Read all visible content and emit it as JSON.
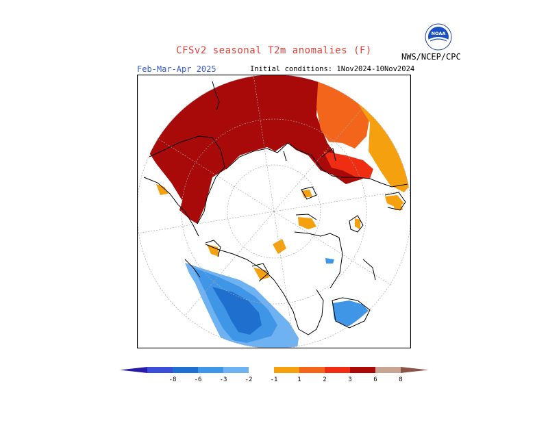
{
  "header": {
    "title": "CFSv2 seasonal T2m anomalies (F)",
    "period": "Feb-Mar-Apr 2025",
    "initial_conditions": "Initial conditions: 1Nov2024-10Nov2024",
    "agency": "NWS/NCEP/CPC",
    "logo_text": "NOAA"
  },
  "colorbar": {
    "tick_labels": [
      "-8",
      "-6",
      "-3",
      "-2",
      "-1",
      "1",
      "2",
      "3",
      "6",
      "8"
    ],
    "colors": [
      "#2a1aa8",
      "#3b4fd6",
      "#1f6fcf",
      "#3f95e6",
      "#6fb2f2",
      "#ffffff",
      "#f5a00e",
      "#f4651c",
      "#ee2d12",
      "#a80b07",
      "#c9a493",
      "#8a5446"
    ]
  },
  "map": {
    "projection": "north polar stereographic",
    "colors": {
      "very_warm": "#a70a08",
      "warm": "#ef2d12",
      "moderate_warm": "#f4651c",
      "slight_warm": "#f5a00e",
      "cool": "#1f6fcf",
      "slight_cool": "#3f95e6",
      "weak_cool": "#6fb2f2",
      "land_outline": "#000000"
    }
  }
}
